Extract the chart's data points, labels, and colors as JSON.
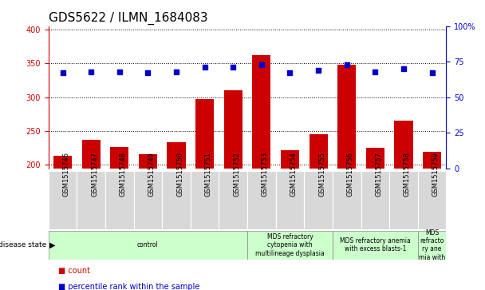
{
  "title": "GDS5622 / ILMN_1684083",
  "samples": [
    "GSM1515746",
    "GSM1515747",
    "GSM1515748",
    "GSM1515749",
    "GSM1515750",
    "GSM1515751",
    "GSM1515752",
    "GSM1515753",
    "GSM1515754",
    "GSM1515755",
    "GSM1515756",
    "GSM1515757",
    "GSM1515758",
    "GSM1515759"
  ],
  "counts": [
    213,
    237,
    226,
    216,
    234,
    297,
    310,
    362,
    222,
    245,
    348,
    225,
    265,
    219
  ],
  "percentiles": [
    67,
    68,
    68,
    67,
    68,
    71,
    71,
    73,
    67,
    69,
    73,
    68,
    70,
    67
  ],
  "ylim_left": [
    195,
    405
  ],
  "ylim_right": [
    0,
    100
  ],
  "yticks_left": [
    200,
    250,
    300,
    350,
    400
  ],
  "yticks_right": [
    0,
    25,
    50,
    75,
    100
  ],
  "bar_color": "#cc0000",
  "dot_color": "#0000cc",
  "groups": [
    {
      "label": "control",
      "start": 0,
      "end": 7
    },
    {
      "label": "MDS refractory\ncytopenia with\nmultilineage dysplasia",
      "start": 7,
      "end": 10
    },
    {
      "label": "MDS refractory anemia\nwith excess blasts-1",
      "start": 10,
      "end": 13
    },
    {
      "label": "MDS\nrefracto\nry ane\nmia with",
      "start": 13,
      "end": 14
    }
  ],
  "group_color": "#ccffcc",
  "sample_box_color": "#d8d8d8",
  "disease_state_label": "disease state",
  "legend_items": [
    {
      "label": "count",
      "color": "#cc0000"
    },
    {
      "label": "percentile rank within the sample",
      "color": "#0000cc"
    }
  ],
  "background_color": "#ffffff",
  "title_fontsize": 11,
  "tick_fontsize": 7,
  "label_fontsize": 6,
  "bar_width": 0.65
}
